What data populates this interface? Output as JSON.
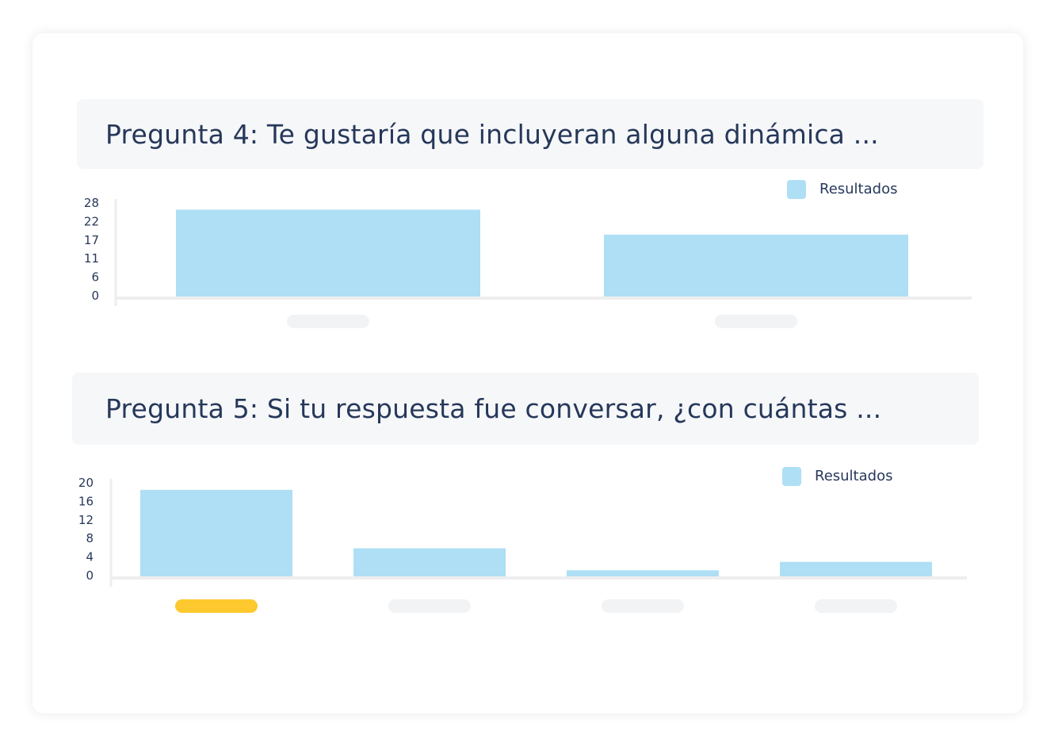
{
  "colors": {
    "bar": "#aedff5",
    "axis": "#eeeeef",
    "text": "#26385a",
    "placeholder_label": "#f2f3f5",
    "highlight_label": "#fdc92e"
  },
  "questions": [
    {
      "title": "Pregunta 4: Te gustaría que incluyeran alguna dinámica ..."
    },
    {
      "title": "Pregunta 5: Si tu respuesta fue conversar, ¿con cuántas ..."
    }
  ],
  "chart_data": [
    {
      "type": "bar",
      "title": "Pregunta 4: Te gustaría que incluyeran alguna dinámica ...",
      "categories": [
        "",
        ""
      ],
      "series": [
        {
          "name": "Resultados",
          "values": [
            26,
            18.5
          ]
        }
      ],
      "yticks": [
        "28",
        "22",
        "17",
        "11",
        "6",
        "0"
      ],
      "ylim": [
        0,
        28
      ],
      "legend": "top-right",
      "grid": false
    },
    {
      "type": "bar",
      "title": "Pregunta 5: Si tu respuesta fue conversar, ¿con cuántas ...",
      "categories": [
        "",
        "",
        "",
        ""
      ],
      "highlighted_category": 0,
      "series": [
        {
          "name": "Resultados",
          "values": [
            18.5,
            6,
            1.3,
            3.1
          ]
        }
      ],
      "yticks": [
        "20",
        "16",
        "12",
        "8",
        "4",
        "0"
      ],
      "ylim": [
        0,
        20
      ],
      "legend": "top-right",
      "grid": false
    }
  ]
}
